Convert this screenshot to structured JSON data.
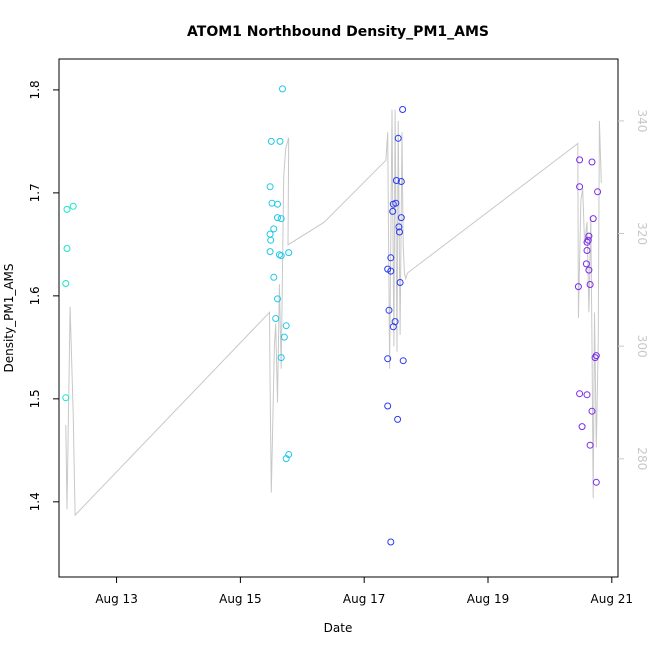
{
  "chart_data": {
    "type": "scatter",
    "title": "ATOM1 Northbound Density_PM1_AMS",
    "xlabel": "Date",
    "ylabel": "Density_PM1_AMS",
    "x_ticks": [
      "Aug 13",
      "Aug 15",
      "Aug 17",
      "Aug 19",
      "Aug 21"
    ],
    "x_tick_days": [
      13,
      15,
      17,
      19,
      21
    ],
    "xlim": [
      12.07,
      21.1
    ],
    "y_ticks": [
      "1.4",
      "1.5",
      "1.6",
      "1.7",
      "1.8"
    ],
    "ylim": [
      1.327,
      1.83
    ],
    "y2_ticks": [
      "280",
      "300",
      "320",
      "340"
    ],
    "y2lim": [
      259,
      351
    ],
    "grid": false,
    "colors": {
      "cyan": "#17e6c8",
      "sky": "#1ec8ea",
      "blue": "#2b3bf0",
      "violet": "#7b2be8",
      "line": "#c8c8c8",
      "axis": "#000000",
      "axis2": "#c8c8c8"
    },
    "series": [
      {
        "color_key": "cyan",
        "points": [
          [
            12.2,
            1.684
          ],
          [
            12.3,
            1.687
          ],
          [
            12.2,
            1.646
          ],
          [
            12.18,
            1.612
          ],
          [
            12.18,
            1.501
          ]
        ]
      },
      {
        "color_key": "sky",
        "points": [
          [
            15.68,
            1.801
          ],
          [
            15.5,
            1.75
          ],
          [
            15.64,
            1.75
          ],
          [
            15.48,
            1.706
          ],
          [
            15.51,
            1.69
          ],
          [
            15.6,
            1.689
          ],
          [
            15.6,
            1.676
          ],
          [
            15.66,
            1.675
          ],
          [
            15.54,
            1.665
          ],
          [
            15.48,
            1.66
          ],
          [
            15.49,
            1.654
          ],
          [
            15.48,
            1.643
          ],
          [
            15.78,
            1.642
          ],
          [
            15.63,
            1.64
          ],
          [
            15.66,
            1.639
          ],
          [
            15.54,
            1.618
          ],
          [
            15.6,
            1.597
          ],
          [
            15.57,
            1.578
          ],
          [
            15.74,
            1.571
          ],
          [
            15.71,
            1.56
          ],
          [
            15.66,
            1.54
          ],
          [
            15.78,
            1.446
          ],
          [
            15.74,
            1.442
          ]
        ]
      },
      {
        "color_key": "blue",
        "points": [
          [
            17.62,
            1.781
          ],
          [
            17.55,
            1.753
          ],
          [
            17.52,
            1.712
          ],
          [
            17.6,
            1.711
          ],
          [
            17.51,
            1.69
          ],
          [
            17.47,
            1.689
          ],
          [
            17.46,
            1.682
          ],
          [
            17.6,
            1.676
          ],
          [
            17.56,
            1.667
          ],
          [
            17.57,
            1.662
          ],
          [
            17.43,
            1.637
          ],
          [
            17.38,
            1.626
          ],
          [
            17.43,
            1.624
          ],
          [
            17.58,
            1.613
          ],
          [
            17.4,
            1.586
          ],
          [
            17.5,
            1.575
          ],
          [
            17.47,
            1.57
          ],
          [
            17.38,
            1.539
          ],
          [
            17.63,
            1.537
          ],
          [
            17.38,
            1.493
          ],
          [
            17.54,
            1.48
          ],
          [
            17.43,
            1.361
          ]
        ]
      },
      {
        "color_key": "violet",
        "points": [
          [
            20.48,
            1.732
          ],
          [
            20.68,
            1.73
          ],
          [
            20.48,
            1.706
          ],
          [
            20.77,
            1.701
          ],
          [
            20.7,
            1.675
          ],
          [
            20.63,
            1.658
          ],
          [
            20.62,
            1.654
          ],
          [
            20.6,
            1.652
          ],
          [
            20.6,
            1.644
          ],
          [
            20.59,
            1.631
          ],
          [
            20.63,
            1.625
          ],
          [
            20.65,
            1.611
          ],
          [
            20.46,
            1.609
          ],
          [
            20.75,
            1.542
          ],
          [
            20.73,
            1.54
          ],
          [
            20.48,
            1.505
          ],
          [
            20.6,
            1.504
          ],
          [
            20.68,
            1.488
          ],
          [
            20.52,
            1.473
          ],
          [
            20.65,
            1.455
          ],
          [
            20.75,
            1.419
          ]
        ]
      }
    ],
    "line_series": {
      "axis": "right",
      "points": [
        [
          12.18,
          286
        ],
        [
          12.2,
          271
        ],
        [
          12.25,
          307
        ],
        [
          12.3,
          288
        ],
        [
          12.33,
          270
        ],
        [
          15.47,
          306
        ],
        [
          15.48,
          293
        ],
        [
          15.5,
          274
        ],
        [
          15.55,
          300
        ],
        [
          15.57,
          304
        ],
        [
          15.6,
          290
        ],
        [
          15.63,
          311
        ],
        [
          15.66,
          296
        ],
        [
          15.7,
          330
        ],
        [
          15.73,
          335
        ],
        [
          15.78,
          337
        ],
        [
          15.77,
          318
        ],
        [
          16.35,
          322
        ],
        [
          17.35,
          333
        ],
        [
          17.38,
          338
        ],
        [
          17.41,
          296
        ],
        [
          17.45,
          342
        ],
        [
          17.48,
          300
        ],
        [
          17.5,
          342
        ],
        [
          17.53,
          299
        ],
        [
          17.55,
          340
        ],
        [
          17.58,
          302
        ],
        [
          17.61,
          338
        ],
        [
          17.63,
          318
        ],
        [
          17.65,
          313
        ],
        [
          17.67,
          312
        ],
        [
          17.7,
          313
        ],
        [
          20.45,
          336
        ],
        [
          20.46,
          305
        ],
        [
          20.5,
          326
        ],
        [
          20.53,
          328
        ],
        [
          20.56,
          318
        ],
        [
          20.6,
          322
        ],
        [
          20.63,
          306
        ],
        [
          20.66,
          323
        ],
        [
          20.68,
          300
        ],
        [
          20.7,
          273
        ],
        [
          20.72,
          306
        ],
        [
          20.75,
          282
        ],
        [
          20.78,
          300
        ],
        [
          20.8,
          340
        ],
        [
          20.83,
          329
        ]
      ]
    }
  }
}
